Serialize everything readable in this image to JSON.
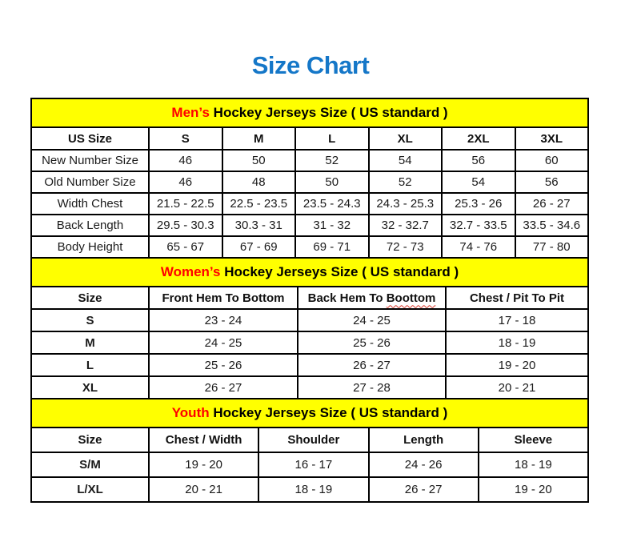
{
  "page": {
    "title": "Size Chart"
  },
  "colors": {
    "title_blue": "#1577c8",
    "band_yellow": "#ffff00",
    "accent_red": "#ff0000",
    "border_black": "#000000",
    "spellcheck_red": "#d83a2e"
  },
  "chart_data": [
    {
      "type": "table",
      "band": {
        "accent": "Men’s",
        "rest": "Hockey Jerseys Size ( US standard )"
      },
      "columns": [
        {
          "label": "US Size"
        },
        {
          "label": "S"
        },
        {
          "label": "M"
        },
        {
          "label": "L"
        },
        {
          "label": "XL"
        },
        {
          "label": "2XL"
        },
        {
          "label": "3XL"
        }
      ],
      "rows": [
        [
          "New Number Size",
          "46",
          "50",
          "52",
          "54",
          "56",
          "60"
        ],
        [
          "Old Number Size",
          "46",
          "48",
          "50",
          "52",
          "54",
          "56"
        ],
        [
          "Width Chest",
          "21.5 - 22.5",
          "22.5 - 23.5",
          "23.5 - 24.3",
          "24.3 - 25.3",
          "25.3 - 26",
          "26 - 27"
        ],
        [
          "Back Length",
          "29.5 - 30.3",
          "30.3 - 31",
          "31 - 32",
          "32 - 32.7",
          "32.7 - 33.5",
          "33.5 - 34.6"
        ],
        [
          "Body Height",
          "65 - 67",
          "67 - 69",
          "69 - 71",
          "72 - 73",
          "74 - 76",
          "77 - 80"
        ]
      ]
    },
    {
      "type": "table",
      "band": {
        "accent": "Women’s",
        "rest": "Hockey Jerseys Size ( US standard )"
      },
      "columns": [
        {
          "label": "Size"
        },
        {
          "label": "Front Hem To Bottom"
        },
        {
          "label": "Back Hem To Boottom",
          "wavy_word": "Boottom"
        },
        {
          "label": "Chest / Pit To Pit"
        }
      ],
      "rows": [
        [
          "S",
          "23 - 24",
          "24 - 25",
          "17 - 18"
        ],
        [
          "M",
          "24 - 25",
          "25 - 26",
          "18 - 19"
        ],
        [
          "L",
          "25 - 26",
          "26 - 27",
          "19 - 20"
        ],
        [
          "XL",
          "26 - 27",
          "27 - 28",
          "20 - 21"
        ]
      ]
    },
    {
      "type": "table",
      "band": {
        "accent": "Youth",
        "rest": "Hockey Jerseys Size ( US standard )"
      },
      "columns": [
        {
          "label": "Size"
        },
        {
          "label": "Chest / Width"
        },
        {
          "label": "Shoulder"
        },
        {
          "label": "Length"
        },
        {
          "label": "Sleeve"
        }
      ],
      "rows": [
        [
          "S/M",
          "19 - 20",
          "16 - 17",
          "24 - 26",
          "18 - 19"
        ],
        [
          "L/XL",
          "20 - 21",
          "18 - 19",
          "26 - 27",
          "19 - 20"
        ]
      ]
    }
  ]
}
